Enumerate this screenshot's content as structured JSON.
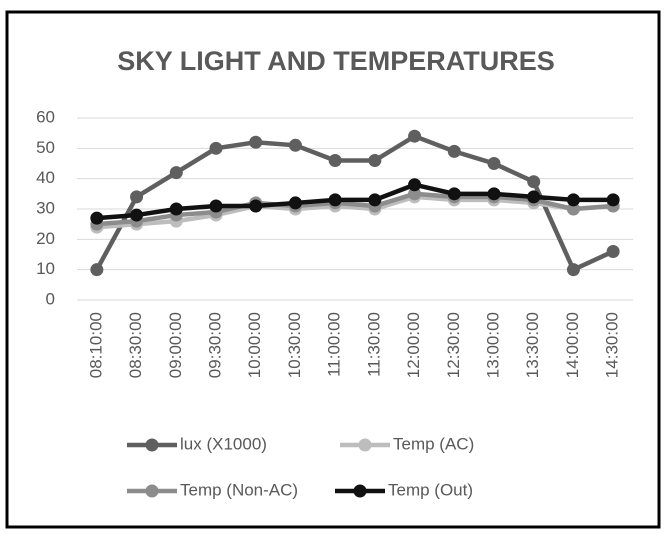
{
  "chart_data": {
    "type": "line",
    "title": "SKY LIGHT  AND TEMPERATURES",
    "categories": [
      "08:10:00",
      "08:30:00",
      "09:00:00",
      "09:30:00",
      "10:00:00",
      "10:30:00",
      "11:00:00",
      "11:30:00",
      "12:00:00",
      "12:30:00",
      "13:00:00",
      "13:30:00",
      "14:00:00",
      "14:30:00"
    ],
    "series": [
      {
        "name": "lux (X1000)",
        "color": "#5f5f5f",
        "values": [
          10,
          34,
          42,
          50,
          52,
          51,
          46,
          46,
          54,
          49,
          45,
          39,
          10,
          16
        ]
      },
      {
        "name": "Temp (AC)",
        "color": "#bdbdbd",
        "values": [
          24,
          25,
          26,
          28,
          31,
          30,
          31,
          30,
          34,
          33,
          33,
          32,
          30,
          31
        ]
      },
      {
        "name": "Temp (Non-AC)",
        "color": "#8c8c8c",
        "values": [
          25,
          26,
          28,
          29,
          32,
          31,
          32,
          31,
          35,
          34,
          34,
          33,
          30,
          31
        ]
      },
      {
        "name": "Temp (Out)",
        "color": "#111111",
        "values": [
          27,
          28,
          30,
          31,
          31,
          32,
          33,
          33,
          38,
          35,
          35,
          34,
          33,
          33
        ]
      }
    ],
    "ylim": [
      0,
      60
    ],
    "yticks": [
      0,
      10,
      20,
      30,
      40,
      50,
      60
    ],
    "grid": true
  }
}
